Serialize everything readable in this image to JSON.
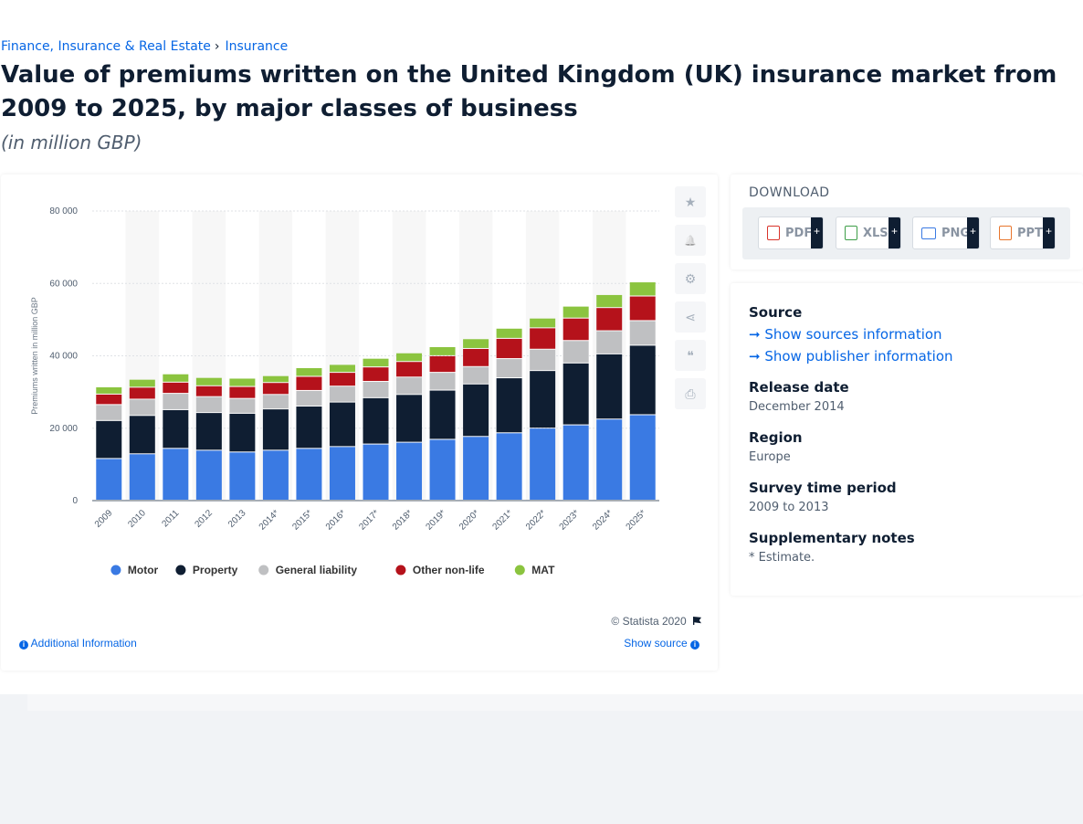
{
  "breadcrumb": {
    "items": [
      "Finance, Insurance & Real Estate",
      "Insurance"
    ],
    "separator": "›"
  },
  "title": "Value of premiums written on the United Kingdom (UK) insurance market from 2009 to 2025, by major classes of business",
  "subtitle": "(in million GBP)",
  "chart_data": {
    "type": "bar",
    "stacked": true,
    "categories": [
      "2009",
      "2010",
      "2011",
      "2012",
      "2013",
      "2014*",
      "2015*",
      "2016*",
      "2017*",
      "2018*",
      "2019*",
      "2020*",
      "2021*",
      "2022*",
      "2023*",
      "2024*",
      "2025*"
    ],
    "series": [
      {
        "name": "Motor",
        "color": "#3a7ae3",
        "values": [
          11500,
          12800,
          14300,
          13800,
          13300,
          13800,
          14300,
          14800,
          15500,
          16000,
          16800,
          17600,
          18600,
          19900,
          20800,
          22400,
          23600
        ]
      },
      {
        "name": "Property",
        "color": "#0f1e32",
        "values": [
          10500,
          10600,
          10700,
          10400,
          10700,
          11400,
          11700,
          12300,
          12800,
          13200,
          13600,
          14500,
          15200,
          15900,
          17100,
          18000,
          19200
        ]
      },
      {
        "name": "General liability",
        "color": "#bfc0c2",
        "values": [
          4400,
          4500,
          4500,
          4400,
          4100,
          4000,
          4300,
          4400,
          4500,
          4800,
          4900,
          4800,
          5300,
          5900,
          6200,
          6400,
          6800
        ]
      },
      {
        "name": "Other non-life",
        "color": "#b5121b",
        "values": [
          2900,
          3300,
          3100,
          3000,
          3300,
          3300,
          3900,
          3800,
          4000,
          4300,
          4600,
          5000,
          5600,
          5900,
          6200,
          6400,
          6800
        ]
      },
      {
        "name": "MAT",
        "color": "#8bc43f",
        "values": [
          2000,
          2200,
          2300,
          2300,
          2300,
          1900,
          2400,
          2200,
          2400,
          2400,
          2500,
          2700,
          2800,
          2700,
          3300,
          3600,
          3900
        ]
      }
    ],
    "xlabel": "",
    "ylabel": "Premiums written in million GBP",
    "ylim": [
      0,
      80000
    ],
    "yticks": [
      "0",
      "20 000",
      "40 000",
      "60 000",
      "80 000"
    ],
    "legend_position": "bottom",
    "grid": true
  },
  "tools": {
    "icons": [
      "star-icon",
      "bell-icon",
      "gear-icon",
      "share-icon",
      "quote-icon",
      "print-icon"
    ],
    "glyphs": [
      "★",
      "🔔",
      "⚙",
      "⋖",
      "❝",
      "⎙"
    ]
  },
  "footer": {
    "copyright": "© Statista 2020",
    "additional_info": "Additional Information",
    "show_source": "Show source"
  },
  "download": {
    "title": "DOWNLOAD",
    "buttons": [
      {
        "label": "PDF",
        "color": "#d9342b"
      },
      {
        "label": "XLS",
        "color": "#3e9e48"
      },
      {
        "label": "PNG",
        "color": "#3a7ae3"
      },
      {
        "label": "PPT",
        "color": "#e8762d"
      }
    ],
    "plus": "+"
  },
  "source": {
    "source_label": "Source",
    "show_sources": "Show sources information",
    "show_publisher": "Show publisher information",
    "release_label": "Release date",
    "release_value": "December 2014",
    "region_label": "Region",
    "region_value": "Europe",
    "survey_label": "Survey time period",
    "survey_value": "2009 to 2013",
    "notes_label": "Supplementary notes",
    "notes_value": "* Estimate."
  }
}
